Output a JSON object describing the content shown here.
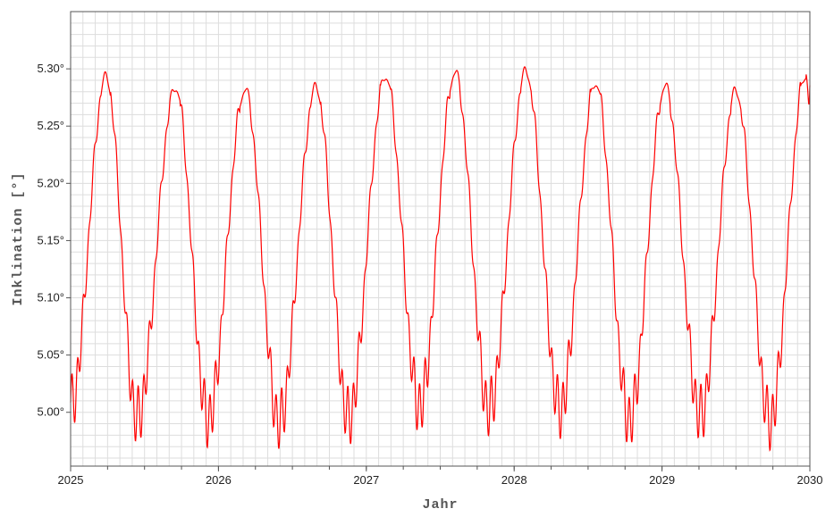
{
  "chart_data": {
    "type": "line",
    "title": "",
    "xlabel": "Jahr",
    "ylabel": "Inklination [°]",
    "xlim": [
      2025.0,
      2030.0
    ],
    "ylim": [
      4.953,
      5.35
    ],
    "grid": true,
    "x_ticks": [
      {
        "value": 2025,
        "label": "2025"
      },
      {
        "value": 2026,
        "label": "2026"
      },
      {
        "value": 2027,
        "label": "2027"
      },
      {
        "value": 2028,
        "label": "2028"
      },
      {
        "value": 2029,
        "label": "2029"
      },
      {
        "value": 2030,
        "label": "2030"
      }
    ],
    "y_ticks": [
      {
        "value": 5.0,
        "label": "5.00°"
      },
      {
        "value": 5.05,
        "label": "5.05°"
      },
      {
        "value": 5.1,
        "label": "5.10°"
      },
      {
        "value": 5.15,
        "label": "5.15°"
      },
      {
        "value": 5.2,
        "label": "5.20°"
      },
      {
        "value": 5.25,
        "label": "5.25°"
      },
      {
        "value": 5.3,
        "label": "5.30°"
      }
    ],
    "series": [
      {
        "color": "#ff0000",
        "description": "oscillating lunar orbit inclination, ~0.473 year period, with short-period ripples",
        "peaks": [
          {
            "x": 2025.24,
            "y": 5.293
          },
          {
            "x": 2025.71,
            "y": 5.284
          },
          {
            "x": 2026.18,
            "y": 5.282
          },
          {
            "x": 2026.66,
            "y": 5.284
          },
          {
            "x": 2027.13,
            "y": 5.294
          },
          {
            "x": 2027.6,
            "y": 5.297
          },
          {
            "x": 2028.08,
            "y": 5.298
          },
          {
            "x": 2028.55,
            "y": 5.288
          },
          {
            "x": 2029.02,
            "y": 5.285
          },
          {
            "x": 2029.5,
            "y": 5.281
          },
          {
            "x": 2029.97,
            "y": 5.294
          }
        ],
        "troughs": [
          {
            "x": 2025.0,
            "y": 5.005
          },
          {
            "x": 2025.45,
            "y": 4.995
          },
          {
            "x": 2025.93,
            "y": 4.994
          },
          {
            "x": 2026.41,
            "y": 4.991
          },
          {
            "x": 2026.88,
            "y": 4.995
          },
          {
            "x": 2027.36,
            "y": 5.005
          },
          {
            "x": 2027.83,
            "y": 5.002
          },
          {
            "x": 2028.31,
            "y": 5.002
          },
          {
            "x": 2028.78,
            "y": 4.993
          },
          {
            "x": 2029.26,
            "y": 4.997
          },
          {
            "x": 2029.73,
            "y": 4.992
          }
        ],
        "end": {
          "x": 2030.0,
          "y": 5.282
        }
      }
    ],
    "colors": {
      "grid": "#dddddd",
      "axis": "#555555",
      "line": "#ff0000"
    }
  }
}
